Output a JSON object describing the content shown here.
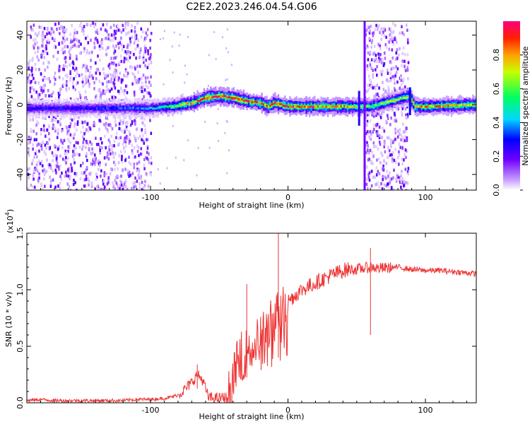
{
  "title": "C2E2.2023.246.04.54.G06",
  "chart_data": [
    {
      "type": "heatmap",
      "xlabel": "Height of straight line (km)",
      "ylabel": "Frequency (Hz)",
      "xlim": [
        -190,
        137
      ],
      "ylim": [
        -49,
        48
      ],
      "xticks": [
        -100,
        0,
        100
      ],
      "yticks": [
        -40,
        -20,
        0,
        20,
        40
      ],
      "colorbar": {
        "label": "Normalized spectral amplitude",
        "range": [
          0,
          1
        ],
        "ticks": [
          0.0,
          0.2,
          0.4,
          0.6,
          0.8
        ],
        "tick_labels": [
          "0.0",
          "0.2",
          "0.4",
          "0.6",
          "0.8"
        ]
      },
      "ridge": {
        "x": [
          -190,
          -150,
          -120,
          -100,
          -85,
          -70,
          -60,
          -50,
          -40,
          -30,
          -20,
          -15,
          -10,
          0,
          20,
          40,
          50,
          56,
          60,
          88,
          92,
          100,
          137
        ],
        "frequency": [
          -2,
          -2,
          -2,
          -2,
          -1,
          1,
          4,
          5,
          4,
          2,
          1,
          -1,
          1,
          -1,
          -1,
          -1,
          -1,
          -1,
          -1,
          5,
          -1,
          -1,
          0
        ],
        "amplitude": [
          0.3,
          0.3,
          0.35,
          0.4,
          0.6,
          0.8,
          0.9,
          0.95,
          0.95,
          0.9,
          0.85,
          0.8,
          0.95,
          0.9,
          0.85,
          0.8,
          0.7,
          0.6,
          0.6,
          0.7,
          0.8,
          0.8,
          0.75
        ]
      },
      "noise_regions": [
        {
          "x_range": [
            -190,
            -100
          ],
          "frequency_range": [
            -49,
            48
          ]
        },
        {
          "x_range": [
            56,
            87
          ],
          "frequency_range": [
            -49,
            48
          ]
        }
      ]
    },
    {
      "type": "line",
      "xlabel": "Height of straight line (km)",
      "ylabel": "SNR (10 * v/v)",
      "y_multiplier": "(x10",
      "y_multiplier_exp": "4",
      "y_multiplier_close": ")",
      "xlim": [
        -190,
        137
      ],
      "ylim": [
        0,
        1.5
      ],
      "xticks": [
        -100,
        0,
        100
      ],
      "yticks": [
        0.0,
        0.5,
        1.0,
        1.5
      ],
      "ytick_labels": [
        "0.0",
        "0.5",
        "1.0",
        "1.5"
      ],
      "color": "#ee3333",
      "series": [
        {
          "x": [
            -190,
            -180,
            -170,
            -160,
            -150,
            -140,
            -130,
            -120,
            -110,
            -100,
            -90,
            -85,
            -80,
            -75,
            -70,
            -66,
            -62,
            -58,
            -55,
            -50,
            -45,
            -42,
            -38,
            -35,
            -30,
            -25,
            -20,
            -15,
            -10,
            -7,
            -5,
            0,
            5,
            10,
            15,
            20,
            30,
            40,
            45,
            50,
            55,
            60,
            62,
            65,
            70,
            80,
            90,
            100,
            110,
            120,
            130,
            137
          ],
          "y": [
            0.02,
            0.03,
            0.02,
            0.02,
            0.02,
            0.02,
            0.02,
            0.02,
            0.03,
            0.03,
            0.04,
            0.05,
            0.07,
            0.12,
            0.18,
            0.25,
            0.2,
            0.05,
            0.04,
            0.04,
            0.05,
            0.1,
            0.3,
            0.4,
            0.45,
            0.55,
            0.6,
            0.65,
            0.75,
            0.8,
            0.85,
            0.9,
            0.95,
            1.0,
            1.03,
            1.06,
            1.12,
            1.17,
            1.18,
            1.18,
            1.19,
            1.2,
            1.2,
            1.19,
            1.19,
            1.2,
            1.18,
            1.17,
            1.17,
            1.16,
            1.15,
            1.14
          ]
        }
      ],
      "spikes": [
        {
          "x": -7,
          "y": 1.5
        },
        {
          "x": -30,
          "y": 1.05
        },
        {
          "x": 60,
          "y": 1.37
        },
        {
          "x": -66,
          "y": 0.34
        }
      ]
    }
  ]
}
